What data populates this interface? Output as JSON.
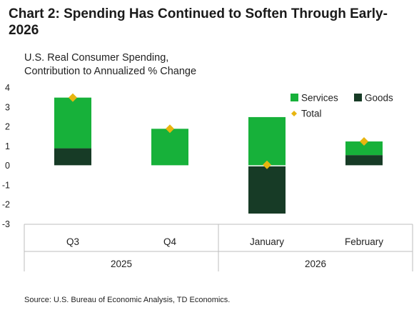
{
  "header": {
    "title": "Chart 2: Spending Has Continued to Soften Through Early-2026",
    "subtitle_line1": "U.S. Real Consumer Spending,",
    "subtitle_line2": "Contribution to Annualized % Change"
  },
  "source": "Source: U.S. Bureau of Economic Analysis, TD Economics.",
  "colors": {
    "services": "#17b13a",
    "goods": "#173b26",
    "total": "#e8b50f",
    "axis": "#bdbdbd"
  },
  "chart_data": {
    "type": "bar",
    "stacked": true,
    "categories": [
      "Q3",
      "Q4",
      "January",
      "February"
    ],
    "groups": [
      {
        "label": "2025",
        "categories": [
          "Q3",
          "Q4"
        ]
      },
      {
        "label": "2026",
        "categories": [
          "January",
          "February"
        ]
      }
    ],
    "series": [
      {
        "name": "Services",
        "type": "bar",
        "values": [
          2.6,
          1.9,
          2.5,
          0.7
        ]
      },
      {
        "name": "Goods",
        "type": "bar",
        "values": [
          0.9,
          0.0,
          -2.45,
          0.55
        ]
      },
      {
        "name": "Total",
        "type": "marker",
        "values": [
          3.5,
          1.9,
          0.05,
          1.25
        ]
      }
    ],
    "ylim": [
      -3,
      4
    ],
    "yticks": [
      4,
      3,
      2,
      1,
      0,
      -1,
      -2,
      -3
    ],
    "ytick_labels": [
      "4",
      "3",
      "2",
      "1",
      "0",
      "-1",
      "-2",
      "-3"
    ],
    "legend_position": "top-right",
    "grid": false
  }
}
